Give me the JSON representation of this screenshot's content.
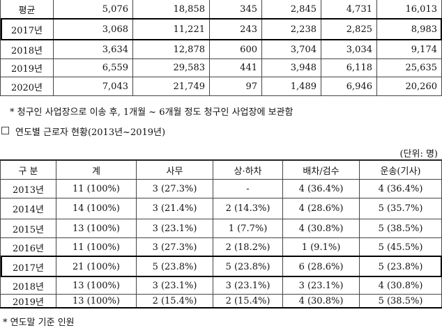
{
  "table1": {
    "rows": [
      [
        "평균",
        "5,076",
        "18,858",
        "345",
        "2,845",
        "4,731",
        "16,013"
      ],
      [
        "2017년",
        "3,068",
        "11,221",
        "243",
        "2,238",
        "2,825",
        "8,983"
      ],
      [
        "2018년",
        "3,634",
        "12,878",
        "600",
        "3,704",
        "3,034",
        "9,174"
      ],
      [
        "2019년",
        "6,559",
        "29,583",
        "441",
        "3,948",
        "6,118",
        "25,635"
      ],
      [
        "2020년",
        "7,043",
        "21,749",
        "97",
        "1,489",
        "6,946",
        "20,260"
      ]
    ]
  },
  "note1": "* 청구인 사업장으로 이송 후, 1개월 ~ 6개월 정도 청구인 사업장에 보관함",
  "section_title": "연도별 근로자 현황(2013년~2019년)",
  "unit": "(단위: 명)",
  "table2": {
    "header": [
      "구 분",
      "계",
      "사무",
      "상·하차",
      "배차/검수",
      "운송(기사)"
    ],
    "rows": [
      [
        "2013년",
        "11 (100%)",
        "3 (27.3%)",
        "-",
        "4 (36.4%)",
        "4 (36.4%)"
      ],
      [
        "2014년",
        "14 (100%)",
        "3 (21.4%)",
        "2 (14.3%)",
        "4 (28.6%)",
        "5 (35.7%)"
      ],
      [
        "2015년",
        "13 (100%)",
        "3 (23.1%)",
        "1 (7.7%)",
        "4 (30.8%)",
        "5 (38.5%)"
      ],
      [
        "2016년",
        "11 (100%)",
        "3 (27.3%)",
        "2 (18.2%)",
        "1 (9.1%)",
        "5 (45.5%)"
      ],
      [
        "2017년",
        "21 (100%)",
        "5 (23.8%)",
        "5 (23.8%)",
        "6 (28.6%)",
        "5 (23.8%)"
      ],
      [
        "2018년",
        "13 (100%)",
        "3 (23.1%)",
        "3 (23.1%)",
        "3 (23.1%)",
        "4 (30.8%)"
      ],
      [
        "2019년",
        "13 (100%)",
        "2 (15.4%)",
        "2 (15.4%)",
        "4 (30.8%)",
        "5 (38.5%)"
      ]
    ]
  },
  "note2": "* 연도말 기준 인원"
}
